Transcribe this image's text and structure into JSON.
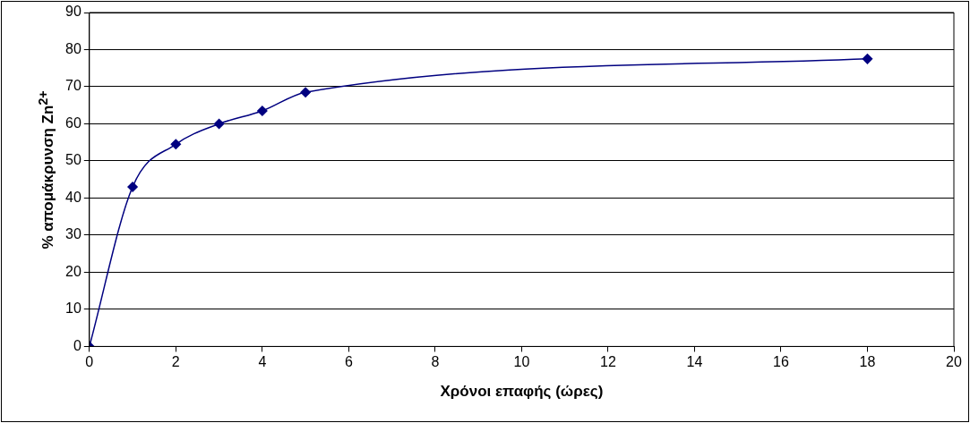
{
  "chart_data": {
    "type": "line",
    "xlabel": "Χρόνοι επαφής (ώρες)",
    "ylabel": "% απομάκρυνση Zn$^{2+}$",
    "x": [
      0,
      1,
      2,
      3,
      4,
      5,
      18
    ],
    "series": [
      {
        "color": "#000080",
        "values": [
          0,
          43,
          54.5,
          60,
          63.5,
          68.5,
          77.5
        ]
      }
    ],
    "xlim": [
      0,
      20
    ],
    "xticks": [
      0,
      2,
      4,
      6,
      8,
      10,
      12,
      14,
      16,
      18,
      20
    ],
    "ylim": [
      0,
      90
    ],
    "yticks": [
      0,
      10,
      20,
      30,
      40,
      50,
      60,
      70,
      80,
      90
    ],
    "grid": "y",
    "legend": false,
    "marker": "diamond",
    "line_style": "solid"
  }
}
